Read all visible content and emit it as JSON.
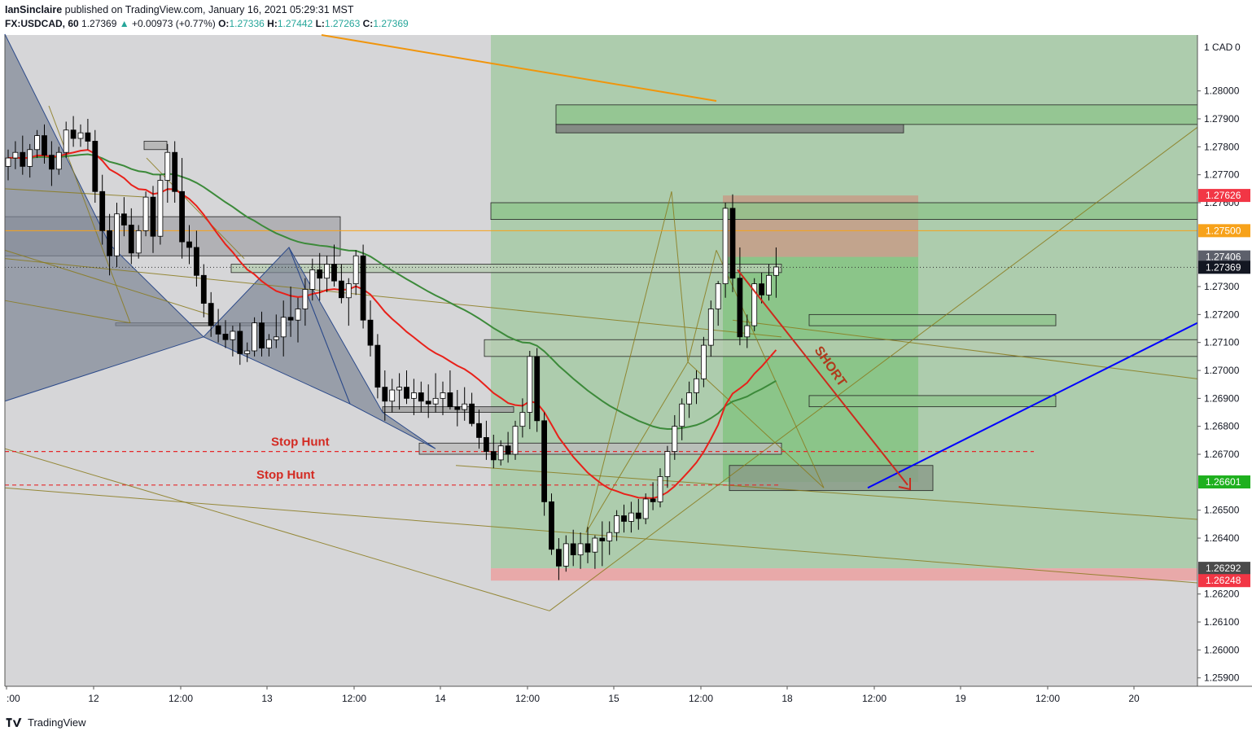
{
  "header": {
    "author": "IanSinclaire",
    "published": "published on TradingView.com, January 16, 2021 05:29:31 MST",
    "symbol": "FX:USDCAD, 60",
    "last": "1.27369",
    "change": "+0.00973 (+0.77%)",
    "o_label": "O:",
    "o": "1.27336",
    "h_label": "H:",
    "h": "1.27442",
    "l_label": "L:",
    "l": "1.27263",
    "c_label": "C:",
    "c": "1.27369"
  },
  "footer": {
    "brand": "TradingView"
  },
  "colors": {
    "background": "#d6d6d8",
    "up_candle": "#ffffff",
    "down_candle": "#000000",
    "ema_red": "#e8211a",
    "ema_green": "#3c8a3a",
    "target_zone": "#8cc48a",
    "stop_zone": "#e8a9a9",
    "short_arrow": "#cc2a1d",
    "trend_blue": "#0000ff",
    "orange_line": "#f0950c"
  },
  "chart_data": {
    "type": "candlestick",
    "instrument": "FX:USDCAD",
    "interval": "60",
    "price_axis": {
      "currency": "1 CAD",
      "ticks": [
        "1.28000",
        "1.27900",
        "1.27800",
        "1.27700",
        "1.27600",
        "1.27300",
        "1.27200",
        "1.27100",
        "1.27000",
        "1.26900",
        "1.26800",
        "1.26700",
        "1.26500",
        "1.26400",
        "1.26200",
        "1.26100",
        "1.26000",
        "1.25900"
      ],
      "ylim": [
        1.2587,
        1.282
      ]
    },
    "time_axis": {
      "ticks": [
        ":00",
        "12",
        "12:00",
        "13",
        "12:00",
        "14",
        "12:00",
        "15",
        "12:00",
        "18",
        "12:00",
        "19",
        "12:00",
        "20"
      ]
    },
    "price_labels": [
      {
        "value": 1.27626,
        "text": "1.27626",
        "color": "#f23645"
      },
      {
        "value": 1.275,
        "text": "1.27500",
        "color": "#f7a21a"
      },
      {
        "value": 1.27406,
        "text": "1.27406",
        "color": "#5d606b"
      },
      {
        "value": 1.27369,
        "text": "1.27369",
        "color": "#131722"
      },
      {
        "value": 1.26601,
        "text": "1.26601",
        "color": "#1eb01e"
      },
      {
        "value": 1.26292,
        "text": "1.26292",
        "color": "#4a4a4a"
      },
      {
        "value": 1.26248,
        "text": "1.26248",
        "color": "#f23645"
      }
    ],
    "annotations": [
      {
        "text": "Stop Hunt",
        "price": 1.2671
      },
      {
        "text": "Stop Hunt",
        "price": 1.2659
      },
      {
        "text": "SHORT"
      }
    ],
    "candles": [
      [
        1.2773,
        1.2779,
        1.2768,
        1.2776
      ],
      [
        1.2776,
        1.2782,
        1.2772,
        1.2778
      ],
      [
        1.2778,
        1.2784,
        1.277,
        1.2773
      ],
      [
        1.2773,
        1.2781,
        1.2769,
        1.2779
      ],
      [
        1.2779,
        1.2786,
        1.2776,
        1.2784
      ],
      [
        1.2784,
        1.2788,
        1.2774,
        1.2777
      ],
      [
        1.2777,
        1.2782,
        1.2766,
        1.2772
      ],
      [
        1.2772,
        1.278,
        1.277,
        1.2778
      ],
      [
        1.2778,
        1.2789,
        1.2776,
        1.2786
      ],
      [
        1.2786,
        1.2791,
        1.278,
        1.2783
      ],
      [
        1.2783,
        1.2788,
        1.278,
        1.2785
      ],
      [
        1.2785,
        1.279,
        1.2779,
        1.2782
      ],
      [
        1.2782,
        1.2786,
        1.276,
        1.2764
      ],
      [
        1.2764,
        1.277,
        1.2745,
        1.275
      ],
      [
        1.275,
        1.2756,
        1.2734,
        1.2741
      ],
      [
        1.2741,
        1.276,
        1.2737,
        1.2756
      ],
      [
        1.2756,
        1.2762,
        1.2748,
        1.2752
      ],
      [
        1.2752,
        1.2758,
        1.2738,
        1.2742
      ],
      [
        1.2742,
        1.2752,
        1.274,
        1.275
      ],
      [
        1.275,
        1.2764,
        1.2748,
        1.2762
      ],
      [
        1.2762,
        1.2766,
        1.2742,
        1.2748
      ],
      [
        1.2748,
        1.277,
        1.2745,
        1.2768
      ],
      [
        1.2768,
        1.2781,
        1.276,
        1.2778
      ],
      [
        1.2778,
        1.2782,
        1.276,
        1.2764
      ],
      [
        1.2764,
        1.2776,
        1.274,
        1.2746
      ],
      [
        1.2746,
        1.2752,
        1.2738,
        1.2744
      ],
      [
        1.2744,
        1.275,
        1.273,
        1.2734
      ],
      [
        1.2734,
        1.2738,
        1.2719,
        1.2724
      ],
      [
        1.2724,
        1.2728,
        1.2712,
        1.2716
      ],
      [
        1.2716,
        1.2722,
        1.271,
        1.2713
      ],
      [
        1.2713,
        1.2718,
        1.2708,
        1.2711
      ],
      [
        1.2711,
        1.2716,
        1.2705,
        1.2714
      ],
      [
        1.2714,
        1.2717,
        1.2702,
        1.2706
      ],
      [
        1.2706,
        1.271,
        1.2703,
        1.2707
      ],
      [
        1.2707,
        1.2719,
        1.2705,
        1.2717
      ],
      [
        1.2717,
        1.2721,
        1.2705,
        1.2708
      ],
      [
        1.2708,
        1.2713,
        1.2705,
        1.2711
      ],
      [
        1.2711,
        1.272,
        1.2708,
        1.2712
      ],
      [
        1.2712,
        1.2725,
        1.2705,
        1.2719
      ],
      [
        1.2719,
        1.273,
        1.2712,
        1.2718
      ],
      [
        1.2718,
        1.2726,
        1.271,
        1.2722
      ],
      [
        1.2722,
        1.2733,
        1.2716,
        1.2729
      ],
      [
        1.2729,
        1.274,
        1.2725,
        1.2736
      ],
      [
        1.2736,
        1.2742,
        1.2725,
        1.2733
      ],
      [
        1.2733,
        1.2741,
        1.2728,
        1.2738
      ],
      [
        1.2738,
        1.2745,
        1.273,
        1.2732
      ],
      [
        1.2732,
        1.2738,
        1.2724,
        1.2726
      ],
      [
        1.2726,
        1.2733,
        1.2716,
        1.2731
      ],
      [
        1.2731,
        1.2743,
        1.2727,
        1.2741
      ],
      [
        1.2741,
        1.2745,
        1.2715,
        1.2718
      ],
      [
        1.2718,
        1.2725,
        1.2705,
        1.2709
      ],
      [
        1.2709,
        1.2713,
        1.269,
        1.2694
      ],
      [
        1.2694,
        1.27,
        1.2682,
        1.2689
      ],
      [
        1.2689,
        1.2697,
        1.2685,
        1.2693
      ],
      [
        1.2693,
        1.2699,
        1.2686,
        1.2694
      ],
      [
        1.2694,
        1.27,
        1.2688,
        1.269
      ],
      [
        1.269,
        1.2697,
        1.2684,
        1.2692
      ],
      [
        1.2692,
        1.2696,
        1.2685,
        1.2689
      ],
      [
        1.2689,
        1.2695,
        1.2683,
        1.2688
      ],
      [
        1.2688,
        1.2699,
        1.2685,
        1.269
      ],
      [
        1.269,
        1.2696,
        1.2684,
        1.2692
      ],
      [
        1.2692,
        1.27,
        1.2686,
        1.2687
      ],
      [
        1.2687,
        1.2693,
        1.268,
        1.2686
      ],
      [
        1.2686,
        1.2694,
        1.2682,
        1.2688
      ],
      [
        1.2688,
        1.2692,
        1.268,
        1.2681
      ],
      [
        1.2681,
        1.2686,
        1.2672,
        1.2676
      ],
      [
        1.2676,
        1.2682,
        1.2668,
        1.2671
      ],
      [
        1.2671,
        1.2677,
        1.2665,
        1.2668
      ],
      [
        1.2668,
        1.2675,
        1.2666,
        1.2673
      ],
      [
        1.2673,
        1.2678,
        1.2667,
        1.267
      ],
      [
        1.267,
        1.2682,
        1.2668,
        1.268
      ],
      [
        1.268,
        1.269,
        1.2676,
        1.2685
      ],
      [
        1.2685,
        1.2707,
        1.2679,
        1.2705
      ],
      [
        1.2705,
        1.2708,
        1.2678,
        1.2682
      ],
      [
        1.2682,
        1.2685,
        1.2648,
        1.2653
      ],
      [
        1.2653,
        1.2656,
        1.2634,
        1.2636
      ],
      [
        1.2636,
        1.264,
        1.2625,
        1.263
      ],
      [
        1.263,
        1.2641,
        1.2628,
        1.2638
      ],
      [
        1.2638,
        1.2643,
        1.263,
        1.2634
      ],
      [
        1.2634,
        1.2642,
        1.2629,
        1.2638
      ],
      [
        1.2638,
        1.2644,
        1.2631,
        1.2635
      ],
      [
        1.2635,
        1.2641,
        1.2629,
        1.264
      ],
      [
        1.264,
        1.2646,
        1.263,
        1.2639
      ],
      [
        1.2639,
        1.2646,
        1.2634,
        1.2642
      ],
      [
        1.2642,
        1.265,
        1.2639,
        1.2648
      ],
      [
        1.2648,
        1.2652,
        1.2642,
        1.2646
      ],
      [
        1.2646,
        1.2653,
        1.2642,
        1.2649
      ],
      [
        1.2649,
        1.2654,
        1.2643,
        1.2647
      ],
      [
        1.2647,
        1.2656,
        1.2645,
        1.2654
      ],
      [
        1.2654,
        1.266,
        1.265,
        1.2653
      ],
      [
        1.2653,
        1.2665,
        1.2651,
        1.2662
      ],
      [
        1.2662,
        1.2673,
        1.2658,
        1.2671
      ],
      [
        1.2671,
        1.2684,
        1.2668,
        1.268
      ],
      [
        1.268,
        1.269,
        1.2675,
        1.2688
      ],
      [
        1.2688,
        1.2696,
        1.2683,
        1.2692
      ],
      [
        1.2692,
        1.27,
        1.2688,
        1.2697
      ],
      [
        1.2697,
        1.2712,
        1.2694,
        1.2709
      ],
      [
        1.2709,
        1.2725,
        1.2705,
        1.2722
      ],
      [
        1.2722,
        1.2732,
        1.2716,
        1.2731
      ],
      [
        1.2731,
        1.276,
        1.2726,
        1.2758
      ],
      [
        1.2758,
        1.2763,
        1.2728,
        1.2733
      ],
      [
        1.2733,
        1.2744,
        1.2709,
        1.2712
      ],
      [
        1.2712,
        1.272,
        1.2708,
        1.2716
      ],
      [
        1.2716,
        1.2733,
        1.2714,
        1.2731
      ],
      [
        1.2731,
        1.2735,
        1.2724,
        1.2727
      ],
      [
        1.2727,
        1.2738,
        1.2725,
        1.2734
      ],
      [
        1.2734,
        1.2744,
        1.2726,
        1.2737
      ]
    ],
    "indicators": [
      {
        "name": "EMA fast",
        "color": "#e8211a"
      },
      {
        "name": "EMA slow",
        "color": "#3c8a3a"
      }
    ]
  }
}
